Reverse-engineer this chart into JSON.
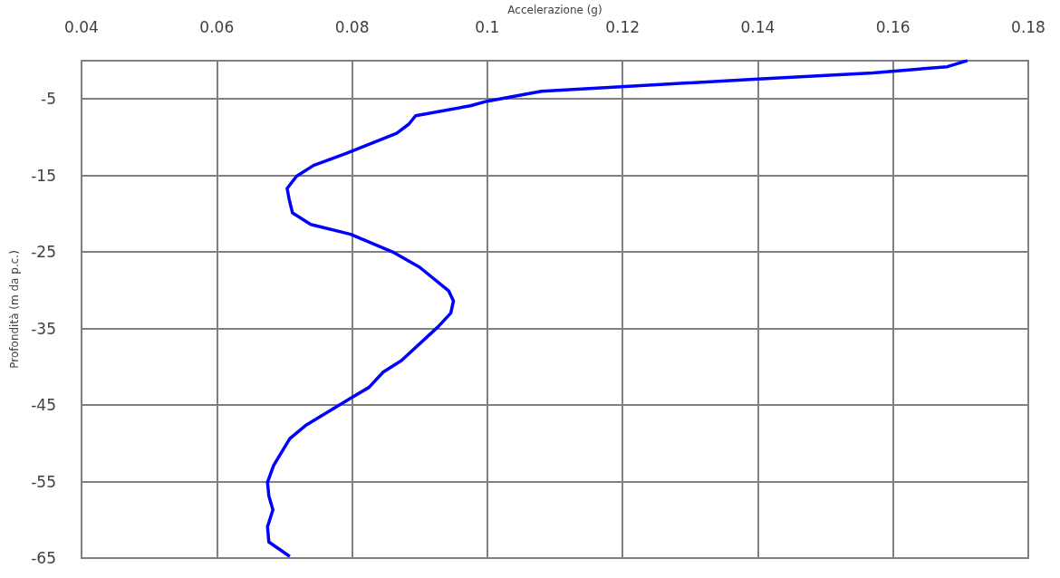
{
  "chart_data": {
    "type": "line",
    "xlabel": "Accelerazione (g)",
    "ylabel": "Profondità (m da p.c.)",
    "series": [
      {
        "color": "#0000ff",
        "x": [
          0.171,
          0.168,
          0.157,
          0.14,
          0.108,
          0.1,
          0.0975,
          0.0894,
          0.0884,
          0.0866,
          0.0792,
          0.0743,
          0.0718,
          0.0704,
          0.0707,
          0.0712,
          0.0739,
          0.0798,
          0.086,
          0.09,
          0.0943,
          0.095,
          0.0946,
          0.0927,
          0.0873,
          0.0846,
          0.0825,
          0.0798,
          0.0731,
          0.0708,
          0.0684,
          0.0675,
          0.0677,
          0.0683,
          0.0675,
          0.0677,
          0.0708
        ],
        "values": [
          0,
          -0.8,
          -1.6,
          -2.4,
          -4.0,
          -5.3,
          -5.9,
          -7.2,
          -8.3,
          -9.5,
          -12.1,
          -13.7,
          -15.1,
          -16.7,
          -18.1,
          -19.9,
          -21.4,
          -22.7,
          -25.0,
          -27.0,
          -30.1,
          -31.4,
          -33.0,
          -34.8,
          -39.2,
          -40.7,
          -42.7,
          -44.1,
          -47.7,
          -49.4,
          -52.9,
          -55.1,
          -56.9,
          -58.7,
          -60.9,
          -62.9,
          -64.8
        ]
      }
    ],
    "xlim": [
      0.04,
      0.18
    ],
    "xticks": [
      0.04,
      0.06,
      0.08,
      0.1,
      0.12,
      0.14,
      0.16,
      0.18
    ],
    "ylim": [
      -65,
      0
    ],
    "yticks": [
      -5,
      -15,
      -25,
      -35,
      -45,
      -55,
      -65
    ],
    "grid": true,
    "marker": "none",
    "line_style": "solid"
  }
}
